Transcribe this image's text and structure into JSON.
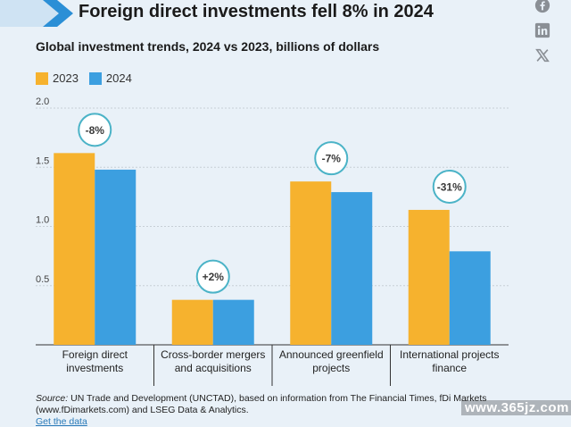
{
  "header": {
    "title": "Foreign direct investments fell 8% in 2024",
    "subtitle": "Global investment trends, 2024 vs 2023, billions of dollars"
  },
  "colors": {
    "series_2023": "#f6b22e",
    "series_2024": "#3c9fe0",
    "badge": "#4bb3c7",
    "brand_chevron": "#2b8fd6"
  },
  "chart_data": {
    "type": "bar",
    "title": "Foreign direct investments fell 8% in 2024",
    "subtitle": "Global investment trends, 2024 vs 2023, billions of dollars",
    "categories": [
      [
        "Foreign direct",
        "investments"
      ],
      [
        "Cross-border mergers",
        "and acquisitions"
      ],
      [
        "Announced greenfield",
        "projects"
      ],
      [
        "International projects",
        "finance"
      ]
    ],
    "series": [
      {
        "name": "2023",
        "values": [
          1.62,
          0.38,
          1.38,
          1.14
        ]
      },
      {
        "name": "2024",
        "values": [
          1.48,
          0.38,
          1.29,
          0.79
        ]
      }
    ],
    "change_labels": [
      "-8%",
      "+2%",
      "-7%",
      "-31%"
    ],
    "yticks": [
      0.5,
      1.0,
      1.5,
      2.0
    ],
    "ytick_labels": [
      "0.5",
      "1.0",
      "1.5",
      "2.0"
    ],
    "ylim": [
      0,
      2.0
    ],
    "grid": true,
    "legend": "top-left",
    "xlabel": "",
    "ylabel": ""
  },
  "footer": {
    "source_label": "Source:",
    "source_text": "UN Trade and Development (UNCTAD), based on information from The Financial Times, fDi Markets (www.fDimarkets.com) and LSEG Data & Analytics.",
    "get_data": "Get the data"
  },
  "share": {
    "facebook_icon": "facebook-icon",
    "linkedin_icon": "linkedin-icon",
    "x_icon": "x-icon"
  },
  "watermark": "www.365jz.com"
}
